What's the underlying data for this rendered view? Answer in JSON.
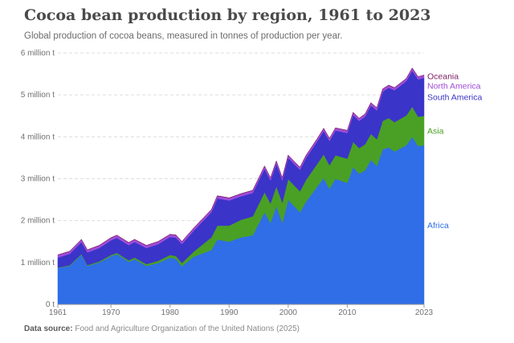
{
  "title": "Cocoa bean production by region, 1961 to 2023",
  "subtitle": "Global production of cocoa beans, measured in tonnes of production per year.",
  "footer": {
    "label": "Data source:",
    "text": "Food and Agriculture Organization of the United Nations (2025)"
  },
  "chart_data": {
    "type": "area",
    "stacked": true,
    "title": "Cocoa bean production by region, 1961 to 2023",
    "xlabel": "",
    "ylabel": "",
    "xlim": [
      1961,
      2023
    ],
    "ylim": [
      0,
      6000000
    ],
    "y_ticks": [
      {
        "value": 0,
        "label": "0 t"
      },
      {
        "value": 1000000,
        "label": "1 million t"
      },
      {
        "value": 2000000,
        "label": "2 million t"
      },
      {
        "value": 3000000,
        "label": "3 million t"
      },
      {
        "value": 4000000,
        "label": "4 million t"
      },
      {
        "value": 5000000,
        "label": "5 million t"
      },
      {
        "value": 6000000,
        "label": "6 million t"
      }
    ],
    "x_ticks": [
      {
        "value": 1961,
        "label": "1961"
      },
      {
        "value": 1970,
        "label": "1970"
      },
      {
        "value": 1980,
        "label": "1980"
      },
      {
        "value": 1990,
        "label": "1990"
      },
      {
        "value": 2000,
        "label": "2000"
      },
      {
        "value": 2010,
        "label": "2010"
      },
      {
        "value": 2023,
        "label": "2023"
      }
    ],
    "grid": true,
    "x": [
      1961,
      1963,
      1965,
      1966,
      1968,
      1970,
      1971,
      1973,
      1974,
      1976,
      1978,
      1980,
      1981,
      1982,
      1984,
      1987,
      1988,
      1990,
      1992,
      1994,
      1996,
      1997,
      1998,
      1999,
      2000,
      2002,
      2003,
      2005,
      2006,
      2007,
      2008,
      2010,
      2011,
      2012,
      2013,
      2014,
      2015,
      2016,
      2017,
      2018,
      2020,
      2021,
      2022,
      2023
    ],
    "series": [
      {
        "name": "Africa",
        "color": "#2f6ee6",
        "values": [
          870000,
          920000,
          1180000,
          920000,
          1000000,
          1150000,
          1200000,
          1020000,
          1080000,
          920000,
          990000,
          1120000,
          1090000,
          910000,
          1140000,
          1300000,
          1550000,
          1500000,
          1600000,
          1650000,
          2200000,
          1950000,
          2350000,
          1950000,
          2500000,
          2200000,
          2450000,
          2830000,
          3020000,
          2760000,
          3000000,
          2900000,
          3280000,
          3120000,
          3200000,
          3450000,
          3300000,
          3700000,
          3750000,
          3650000,
          3800000,
          4000000,
          3780000,
          3800000
        ]
      },
      {
        "name": "Asia",
        "color": "#4aa024",
        "values": [
          10000,
          15000,
          20000,
          20000,
          25000,
          30000,
          30000,
          35000,
          40000,
          45000,
          50000,
          60000,
          65000,
          80000,
          120000,
          300000,
          330000,
          380000,
          420000,
          450000,
          480000,
          460000,
          470000,
          480000,
          490000,
          500000,
          520000,
          540000,
          560000,
          560000,
          560000,
          580000,
          600000,
          610000,
          620000,
          620000,
          640000,
          680000,
          700000,
          700000,
          710000,
          720000,
          700000,
          700000
        ]
      },
      {
        "name": "South America",
        "color": "#3a34c9",
        "values": [
          240000,
          270000,
          290000,
          300000,
          320000,
          350000,
          360000,
          360000,
          370000,
          380000,
          400000,
          430000,
          440000,
          450000,
          500000,
          600000,
          650000,
          600000,
          560000,
          560000,
          560000,
          550000,
          540000,
          530000,
          510000,
          510000,
          520000,
          540000,
          560000,
          580000,
          590000,
          610000,
          640000,
          650000,
          660000,
          680000,
          690000,
          700000,
          720000,
          760000,
          820000,
          860000,
          890000,
          910000
        ]
      },
      {
        "name": "North America",
        "color": "#a04cd8",
        "values": [
          60000,
          60000,
          60000,
          60000,
          60000,
          60000,
          60000,
          60000,
          60000,
          60000,
          60000,
          60000,
          60000,
          60000,
          60000,
          60000,
          60000,
          60000,
          60000,
          60000,
          60000,
          60000,
          60000,
          60000,
          60000,
          60000,
          60000,
          60000,
          60000,
          60000,
          60000,
          60000,
          60000,
          60000,
          60000,
          60000,
          60000,
          60000,
          60000,
          60000,
          60000,
          60000,
          60000,
          60000
        ]
      },
      {
        "name": "Oceania",
        "color": "#7b1f63",
        "values": [
          5000,
          5000,
          5000,
          5000,
          5000,
          5000,
          5000,
          5000,
          5000,
          5000,
          5000,
          5000,
          5000,
          5000,
          5000,
          5000,
          5000,
          5000,
          5000,
          5000,
          5000,
          5000,
          5000,
          5000,
          5000,
          5000,
          5000,
          5000,
          5000,
          5000,
          5000,
          5000,
          5000,
          5000,
          5000,
          5000,
          5000,
          5000,
          5000,
          5000,
          5000,
          5000,
          5000,
          5000
        ]
      }
    ],
    "legend": [
      {
        "name": "Oceania",
        "color": "#7b1f63"
      },
      {
        "name": "North America",
        "color": "#a04cd8"
      },
      {
        "name": "South America",
        "color": "#3a34c9"
      },
      {
        "name": "Asia",
        "color": "#4aa024"
      },
      {
        "name": "Africa",
        "color": "#2f6ee6"
      }
    ],
    "legend_placement": "right"
  }
}
